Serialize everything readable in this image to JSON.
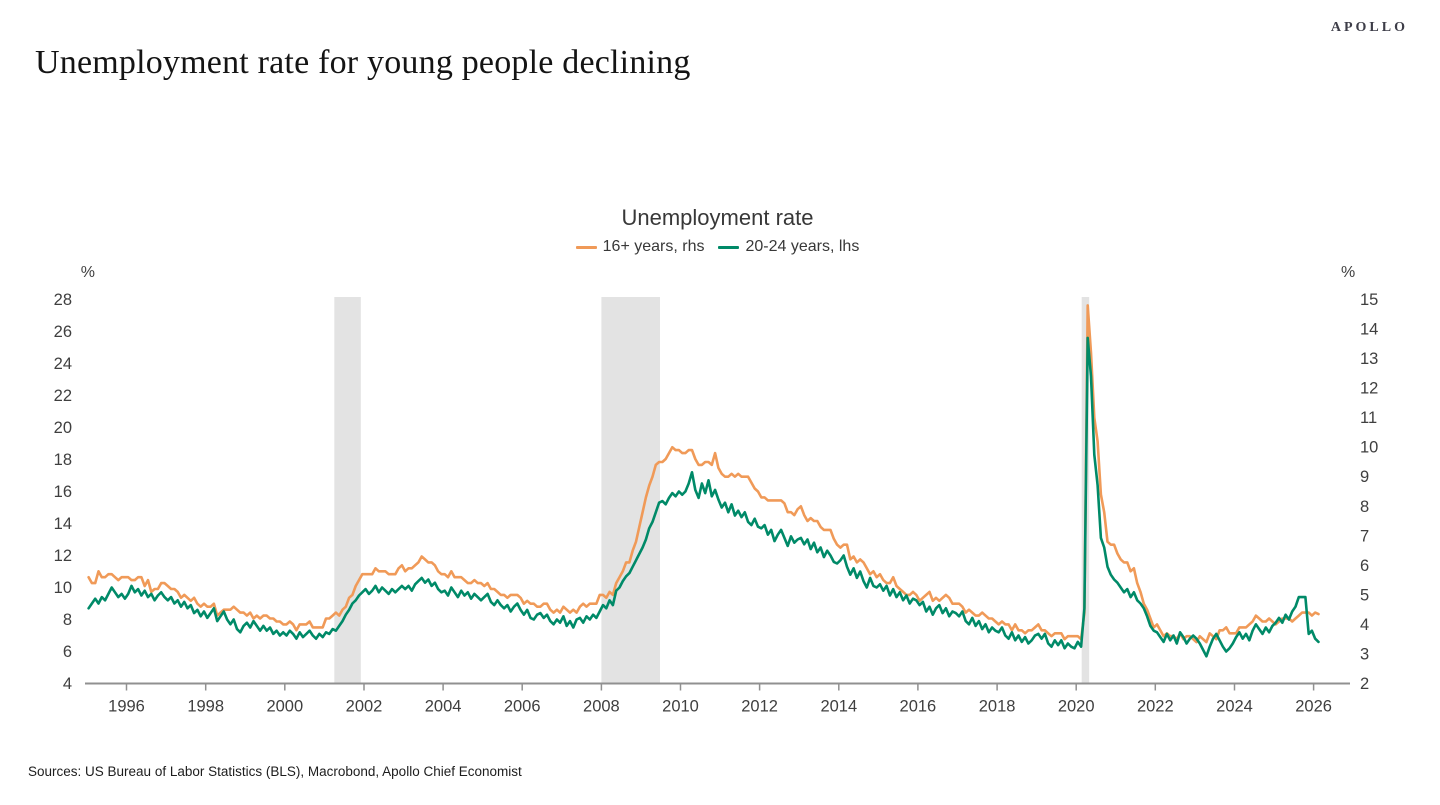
{
  "brand": {
    "logo_text": "APOLLO"
  },
  "page_title": "Unemployment rate for young people declining",
  "source_note": "Sources: US Bureau of Labor Statistics (BLS), Macrobond, Apollo Chief Economist",
  "chart_data": {
    "type": "line",
    "title": "Unemployment rate",
    "x_axis": {
      "start_year": 1995,
      "frequency": "monthly",
      "range": [
        1994.95,
        2026.92
      ],
      "tick_years": [
        1996,
        1998,
        2000,
        2002,
        2004,
        2006,
        2008,
        2010,
        2012,
        2014,
        2016,
        2018,
        2020,
        2022,
        2024,
        2026
      ]
    },
    "y_left": {
      "unit_label": "%",
      "range": [
        4,
        28
      ],
      "ticks": [
        28,
        26,
        24,
        22,
        20,
        18,
        16,
        14,
        12,
        10,
        8,
        6,
        4
      ],
      "applies_to": "20-24 years"
    },
    "y_right": {
      "unit_label": "%",
      "range": [
        2,
        15
      ],
      "ticks": [
        15,
        14,
        13,
        12,
        11,
        10,
        9,
        8,
        7,
        6,
        5,
        4,
        3,
        2
      ],
      "applies_to": "16+ years"
    },
    "recession_bands": [
      {
        "from": 2001.25,
        "to": 2001.92
      },
      {
        "from": 2008.0,
        "to": 2009.48
      },
      {
        "from": 2020.14,
        "to": 2020.33
      }
    ],
    "band_color": "#e3e3e3",
    "axis_color": "#909090",
    "series": [
      {
        "name": "16+ years, rhs",
        "axis": "right",
        "color": "#f09a58",
        "values": [
          5.6,
          5.4,
          5.4,
          5.8,
          5.6,
          5.6,
          5.7,
          5.7,
          5.6,
          5.5,
          5.6,
          5.6,
          5.6,
          5.5,
          5.5,
          5.6,
          5.6,
          5.3,
          5.5,
          5.1,
          5.2,
          5.2,
          5.4,
          5.4,
          5.3,
          5.2,
          5.2,
          5.1,
          4.9,
          5.0,
          4.9,
          4.8,
          4.9,
          4.7,
          4.6,
          4.7,
          4.6,
          4.6,
          4.7,
          4.3,
          4.4,
          4.5,
          4.5,
          4.5,
          4.6,
          4.5,
          4.4,
          4.4,
          4.3,
          4.4,
          4.2,
          4.3,
          4.2,
          4.3,
          4.3,
          4.2,
          4.2,
          4.1,
          4.1,
          4.0,
          4.0,
          4.1,
          4.0,
          3.8,
          4.0,
          4.0,
          4.0,
          4.1,
          3.9,
          3.9,
          3.9,
          3.9,
          4.2,
          4.2,
          4.3,
          4.4,
          4.3,
          4.5,
          4.6,
          4.9,
          5.0,
          5.3,
          5.5,
          5.7,
          5.7,
          5.7,
          5.7,
          5.9,
          5.8,
          5.8,
          5.8,
          5.7,
          5.7,
          5.7,
          5.9,
          6.0,
          5.8,
          5.9,
          5.9,
          6.0,
          6.1,
          6.3,
          6.2,
          6.1,
          6.1,
          6.0,
          5.8,
          5.7,
          5.7,
          5.6,
          5.8,
          5.6,
          5.6,
          5.6,
          5.5,
          5.4,
          5.4,
          5.5,
          5.4,
          5.4,
          5.3,
          5.4,
          5.2,
          5.2,
          5.1,
          5.0,
          5.0,
          4.9,
          5.0,
          5.0,
          5.0,
          4.9,
          4.7,
          4.8,
          4.7,
          4.7,
          4.6,
          4.6,
          4.7,
          4.7,
          4.5,
          4.4,
          4.5,
          4.4,
          4.6,
          4.5,
          4.4,
          4.5,
          4.4,
          4.6,
          4.7,
          4.6,
          4.7,
          4.7,
          4.7,
          5.0,
          5.0,
          4.9,
          5.1,
          5.0,
          5.4,
          5.6,
          5.8,
          6.1,
          6.1,
          6.5,
          6.8,
          7.3,
          7.8,
          8.3,
          8.7,
          9.0,
          9.4,
          9.5,
          9.5,
          9.6,
          9.8,
          10.0,
          9.9,
          9.9,
          9.8,
          9.8,
          9.9,
          9.9,
          9.6,
          9.4,
          9.4,
          9.5,
          9.5,
          9.4,
          9.8,
          9.3,
          9.1,
          9.0,
          9.0,
          9.1,
          9.0,
          9.1,
          9.0,
          9.0,
          9.0,
          8.8,
          8.6,
          8.5,
          8.3,
          8.3,
          8.2,
          8.2,
          8.2,
          8.2,
          8.2,
          8.1,
          7.8,
          7.8,
          7.7,
          7.9,
          8.0,
          7.7,
          7.5,
          7.6,
          7.5,
          7.5,
          7.3,
          7.2,
          7.2,
          7.2,
          6.9,
          6.7,
          6.6,
          6.7,
          6.7,
          6.2,
          6.3,
          6.1,
          6.2,
          6.1,
          5.9,
          5.7,
          5.8,
          5.6,
          5.7,
          5.5,
          5.4,
          5.4,
          5.6,
          5.3,
          5.2,
          5.1,
          5.0,
          5.0,
          5.1,
          5.0,
          4.8,
          4.9,
          5.0,
          5.1,
          4.8,
          4.9,
          4.8,
          4.9,
          5.0,
          4.9,
          4.7,
          4.7,
          4.7,
          4.6,
          4.4,
          4.5,
          4.4,
          4.3,
          4.3,
          4.4,
          4.3,
          4.2,
          4.2,
          4.1,
          4.0,
          4.1,
          4.0,
          4.0,
          3.8,
          4.0,
          3.8,
          3.8,
          3.7,
          3.8,
          3.8,
          3.9,
          4.0,
          3.8,
          3.8,
          3.7,
          3.6,
          3.7,
          3.7,
          3.7,
          3.5,
          3.6,
          3.6,
          3.6,
          3.6,
          3.5,
          4.4,
          14.8,
          13.2,
          11.0,
          10.2,
          8.4,
          7.8,
          6.8,
          6.7,
          6.7,
          6.4,
          6.2,
          6.1,
          6.1,
          5.8,
          5.9,
          5.4,
          5.1,
          4.7,
          4.5,
          4.2,
          3.9,
          4.0,
          3.8,
          3.6,
          3.7,
          3.6,
          3.6,
          3.5,
          3.7,
          3.5,
          3.6,
          3.6,
          3.5,
          3.4,
          3.6,
          3.5,
          3.4,
          3.7,
          3.6,
          3.5,
          3.8,
          3.8,
          3.9,
          3.7,
          3.7,
          3.7,
          3.9,
          3.9,
          3.9,
          4.0,
          4.1,
          4.3,
          4.2,
          4.1,
          4.1,
          4.2,
          4.1,
          4.0,
          4.1,
          4.2,
          4.2,
          4.2,
          4.1,
          4.2,
          4.3,
          4.4,
          4.4,
          4.4,
          4.3,
          4.4,
          4.35
        ]
      },
      {
        "name": "20-24 years, lhs",
        "axis": "left",
        "color": "#008a68",
        "values": [
          8.7,
          9.0,
          9.3,
          9.0,
          9.4,
          9.2,
          9.6,
          10.0,
          9.7,
          9.4,
          9.6,
          9.3,
          9.6,
          10.1,
          9.7,
          9.9,
          9.5,
          9.8,
          9.4,
          9.6,
          9.2,
          9.5,
          9.7,
          9.4,
          9.2,
          9.4,
          9.0,
          9.2,
          8.8,
          9.1,
          8.7,
          8.9,
          8.4,
          8.6,
          8.2,
          8.5,
          8.1,
          8.4,
          8.7,
          7.9,
          8.2,
          8.5,
          8.0,
          7.7,
          8.0,
          7.4,
          7.2,
          7.6,
          7.8,
          7.5,
          7.9,
          7.6,
          7.3,
          7.6,
          7.3,
          7.5,
          7.1,
          7.3,
          7.0,
          7.2,
          7.0,
          7.3,
          7.1,
          6.8,
          7.2,
          6.9,
          7.1,
          7.3,
          7.0,
          6.8,
          7.1,
          6.9,
          7.2,
          7.1,
          7.4,
          7.3,
          7.6,
          7.9,
          8.3,
          8.6,
          9.0,
          9.2,
          9.5,
          9.7,
          9.9,
          9.6,
          9.8,
          10.1,
          9.7,
          10.0,
          9.8,
          9.6,
          9.9,
          9.7,
          9.9,
          10.1,
          9.9,
          10.1,
          9.8,
          10.2,
          10.4,
          10.6,
          10.3,
          10.5,
          10.1,
          10.3,
          9.9,
          9.7,
          9.8,
          9.5,
          10.0,
          9.7,
          9.4,
          9.8,
          9.5,
          9.7,
          9.3,
          9.6,
          9.4,
          9.2,
          9.4,
          9.6,
          9.1,
          8.9,
          9.2,
          8.9,
          8.7,
          8.9,
          8.5,
          8.8,
          9.0,
          8.6,
          8.3,
          8.6,
          8.1,
          8.0,
          8.3,
          8.4,
          8.1,
          8.3,
          7.9,
          7.7,
          8.0,
          7.8,
          8.2,
          7.6,
          7.9,
          7.5,
          8.0,
          8.1,
          7.8,
          8.2,
          8.0,
          8.3,
          8.1,
          8.5,
          8.9,
          8.7,
          9.2,
          8.9,
          9.8,
          10.0,
          10.4,
          10.7,
          10.9,
          11.3,
          11.7,
          12.1,
          12.5,
          13.0,
          13.7,
          14.1,
          14.7,
          15.3,
          15.4,
          15.2,
          15.6,
          15.9,
          15.7,
          16.0,
          15.8,
          16.0,
          16.5,
          17.2,
          16.1,
          15.6,
          16.5,
          15.9,
          16.7,
          15.7,
          16.1,
          15.5,
          15.0,
          15.3,
          14.7,
          15.2,
          14.5,
          14.8,
          14.4,
          14.7,
          14.1,
          13.9,
          14.3,
          13.8,
          13.7,
          13.9,
          13.3,
          13.6,
          12.9,
          13.3,
          13.6,
          13.1,
          12.6,
          13.2,
          12.8,
          13.0,
          13.1,
          12.7,
          13.0,
          12.4,
          12.8,
          12.2,
          12.5,
          11.9,
          12.3,
          12.0,
          11.6,
          11.5,
          11.7,
          12.0,
          11.3,
          10.8,
          11.2,
          10.6,
          11.0,
          10.4,
          10.0,
          10.6,
          10.1,
          10.0,
          10.2,
          9.8,
          10.1,
          9.5,
          9.9,
          9.4,
          9.7,
          9.2,
          9.5,
          9.0,
          9.3,
          9.2,
          8.9,
          9.1,
          8.5,
          8.8,
          8.3,
          8.7,
          8.9,
          8.4,
          8.7,
          8.2,
          8.5,
          8.4,
          8.2,
          8.5,
          7.9,
          7.7,
          8.1,
          7.6,
          7.9,
          7.4,
          7.7,
          7.2,
          7.5,
          7.3,
          7.2,
          7.5,
          7.0,
          6.8,
          7.2,
          6.7,
          7.0,
          6.6,
          6.9,
          6.5,
          6.7,
          7.0,
          7.1,
          6.8,
          7.1,
          6.5,
          6.3,
          6.7,
          6.4,
          6.7,
          6.2,
          6.5,
          6.3,
          6.2,
          6.6,
          6.3,
          8.7,
          25.6,
          23.2,
          18.3,
          16.4,
          13.1,
          12.5,
          11.3,
          10.8,
          10.5,
          10.3,
          10.0,
          9.7,
          9.9,
          9.4,
          9.7,
          9.2,
          9.0,
          8.7,
          8.2,
          7.6,
          7.3,
          7.2,
          6.9,
          6.6,
          7.1,
          6.7,
          7.0,
          6.5,
          7.2,
          6.9,
          6.5,
          6.8,
          7.0,
          6.8,
          6.5,
          6.1,
          5.7,
          6.3,
          6.8,
          7.1,
          6.7,
          6.3,
          6.0,
          6.2,
          6.5,
          6.9,
          7.2,
          6.8,
          7.1,
          6.7,
          7.3,
          7.7,
          7.4,
          7.1,
          7.5,
          7.2,
          7.6,
          7.8,
          8.1,
          7.8,
          8.3,
          8.0,
          8.5,
          8.8,
          9.4,
          9.4,
          9.4,
          7.1,
          7.3,
          6.8,
          6.6
        ]
      }
    ]
  }
}
